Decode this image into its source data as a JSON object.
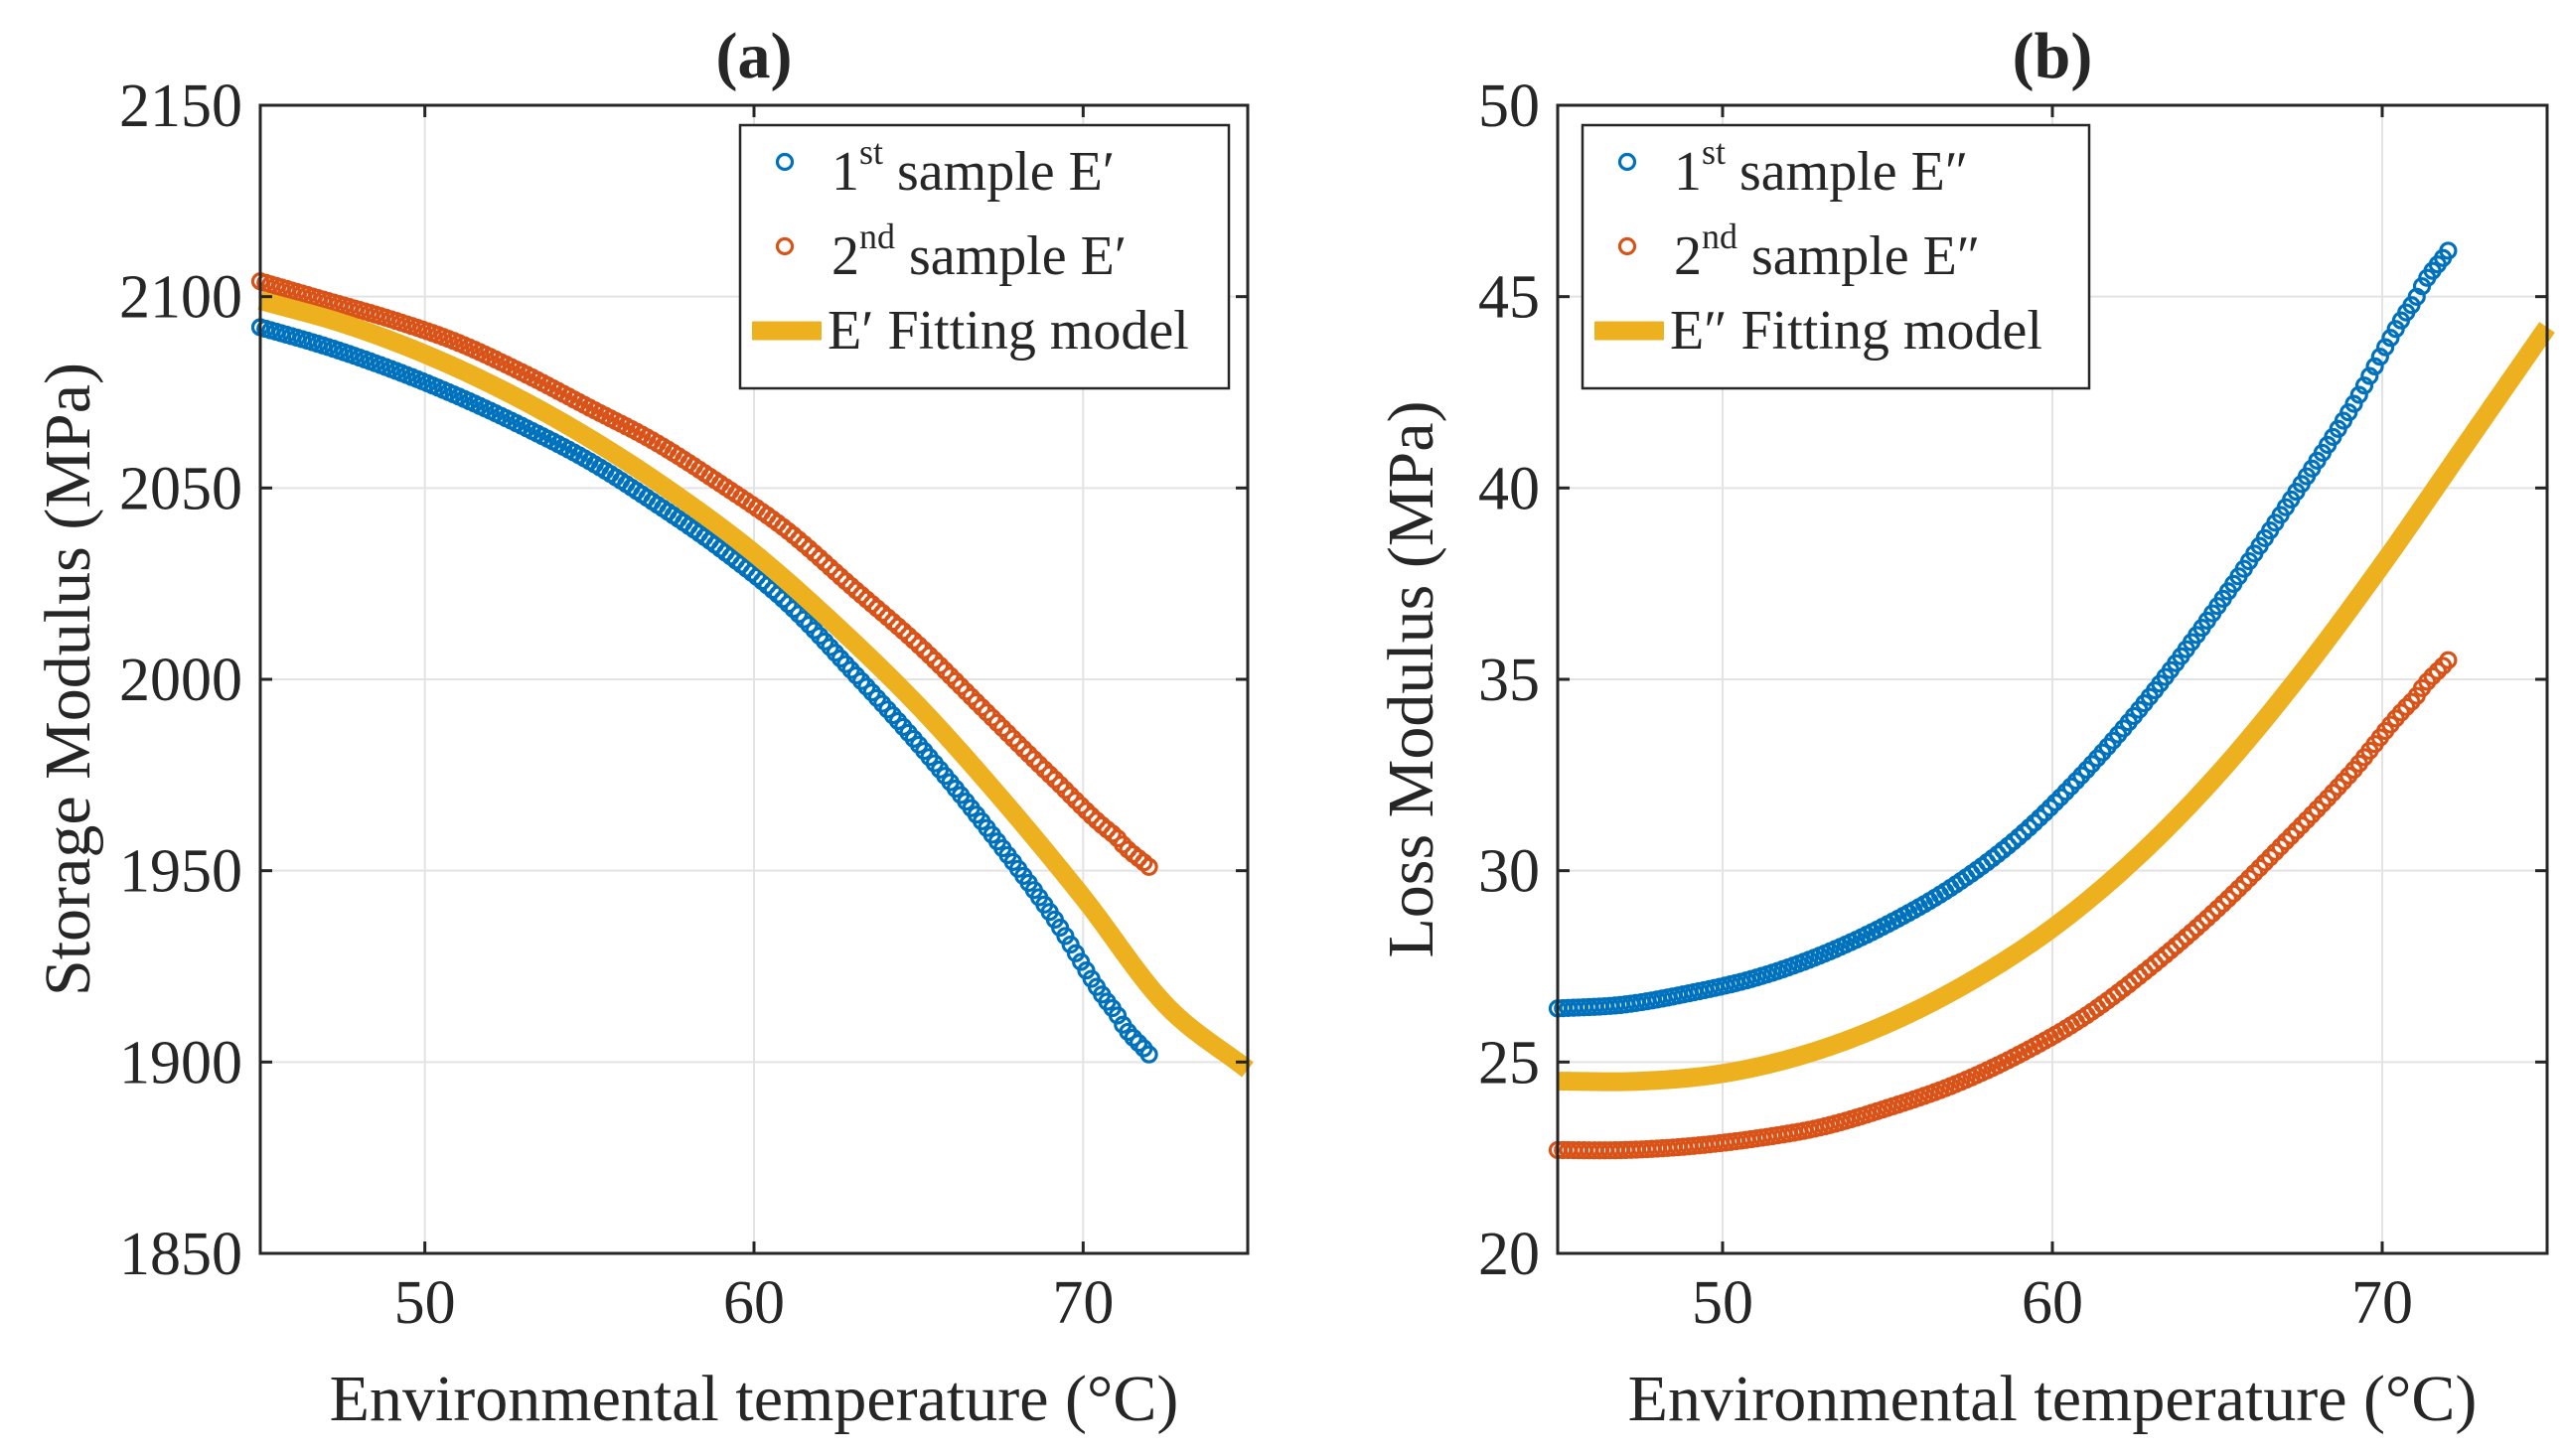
{
  "colors": {
    "sample1": "#0072BD",
    "sample2": "#D95319",
    "fitting": "#EDB120",
    "axis": "#262626",
    "grid": "#e3e3e3"
  },
  "chart_data": [
    {
      "id": "a",
      "type": "scatter",
      "title": "(a)",
      "xlabel": "Environmental temperature (°C)",
      "ylabel": "Storage Modulus (MPa)",
      "xlim": [
        45,
        75
      ],
      "ylim": [
        1850,
        2150
      ],
      "xticks": [
        50,
        60,
        70
      ],
      "yticks": [
        1850,
        1900,
        1950,
        2000,
        2050,
        2100,
        2150
      ],
      "grid": true,
      "legend_position": "top-right",
      "legend": [
        {
          "pre": "1",
          "sup": "st",
          "post": " sample E′"
        },
        {
          "pre": "2",
          "sup": "nd",
          "post": " sample E′"
        },
        {
          "pre": "E′ Fitting model",
          "sup": "",
          "post": ""
        }
      ],
      "series": [
        {
          "name": "1st sample E′",
          "style": "markers",
          "color_key": "sample1",
          "x": [
            45,
            47,
            49,
            51,
            53,
            55,
            57,
            59,
            61,
            63,
            65,
            67,
            69,
            71,
            72
          ],
          "y": [
            2092,
            2087,
            2081,
            2074,
            2066,
            2057,
            2046,
            2034,
            2020,
            2002,
            1983,
            1962,
            1939,
            1913,
            1902
          ]
        },
        {
          "name": "2nd sample E′",
          "style": "markers",
          "color_key": "sample2",
          "x": [
            45,
            47,
            49,
            51,
            53,
            55,
            57,
            59,
            61,
            63,
            65,
            67,
            69,
            71,
            72
          ],
          "y": [
            2104,
            2099,
            2094,
            2088,
            2080,
            2071,
            2062,
            2051,
            2039,
            2024,
            2009,
            1992,
            1975,
            1959,
            1951
          ]
        },
        {
          "name": "E′ Fitting model",
          "style": "line",
          "color_key": "fitting",
          "x": [
            45,
            47.5,
            50,
            52.5,
            55,
            57.5,
            60,
            62.5,
            65,
            67.5,
            70,
            72.5,
            75
          ],
          "y": [
            2099,
            2093,
            2085,
            2075,
            2063,
            2049,
            2033,
            2014,
            1993,
            1969,
            1943,
            1915,
            1898
          ]
        }
      ]
    },
    {
      "id": "b",
      "type": "scatter",
      "title": "(b)",
      "xlabel": "Environmental temperature (°C)",
      "ylabel": "Loss Modulus (MPa)",
      "xlim": [
        45,
        75
      ],
      "ylim": [
        20,
        50
      ],
      "xticks": [
        50,
        60,
        70
      ],
      "yticks": [
        20,
        25,
        30,
        35,
        40,
        45,
        50
      ],
      "grid": true,
      "legend_position": "top-left",
      "legend": [
        {
          "pre": "1",
          "sup": "st",
          "post": " sample E″"
        },
        {
          "pre": "2",
          "sup": "nd",
          "post": " sample E″"
        },
        {
          "pre": "E″ Fitting model",
          "sup": "",
          "post": ""
        }
      ],
      "series": [
        {
          "name": "1st sample E″",
          "style": "markers",
          "color_key": "sample1",
          "x": [
            45,
            47,
            49,
            51,
            53,
            55,
            57,
            59,
            61,
            63,
            65,
            67,
            69,
            71,
            72
          ],
          "y": [
            26.4,
            26.5,
            26.8,
            27.2,
            27.8,
            28.6,
            29.6,
            30.9,
            32.6,
            34.6,
            36.9,
            39.4,
            42.0,
            44.9,
            46.2
          ]
        },
        {
          "name": "2nd sample E″",
          "style": "markers",
          "color_key": "sample2",
          "x": [
            45,
            47,
            49,
            51,
            53,
            55,
            57,
            59,
            61,
            63,
            65,
            67,
            69,
            71,
            72
          ],
          "y": [
            22.7,
            22.7,
            22.8,
            23.0,
            23.3,
            23.8,
            24.4,
            25.2,
            26.2,
            27.5,
            29.0,
            30.7,
            32.5,
            34.5,
            35.5
          ]
        },
        {
          "name": "E″ Fitting model",
          "style": "line",
          "color_key": "fitting",
          "x": [
            45,
            47.5,
            50,
            52.5,
            55,
            57.5,
            60,
            62.5,
            65,
            67.5,
            70,
            72.5,
            75
          ],
          "y": [
            24.5,
            24.5,
            24.7,
            25.2,
            26.0,
            27.1,
            28.5,
            30.3,
            32.5,
            35.1,
            38.0,
            41.1,
            44.2
          ]
        }
      ]
    }
  ]
}
